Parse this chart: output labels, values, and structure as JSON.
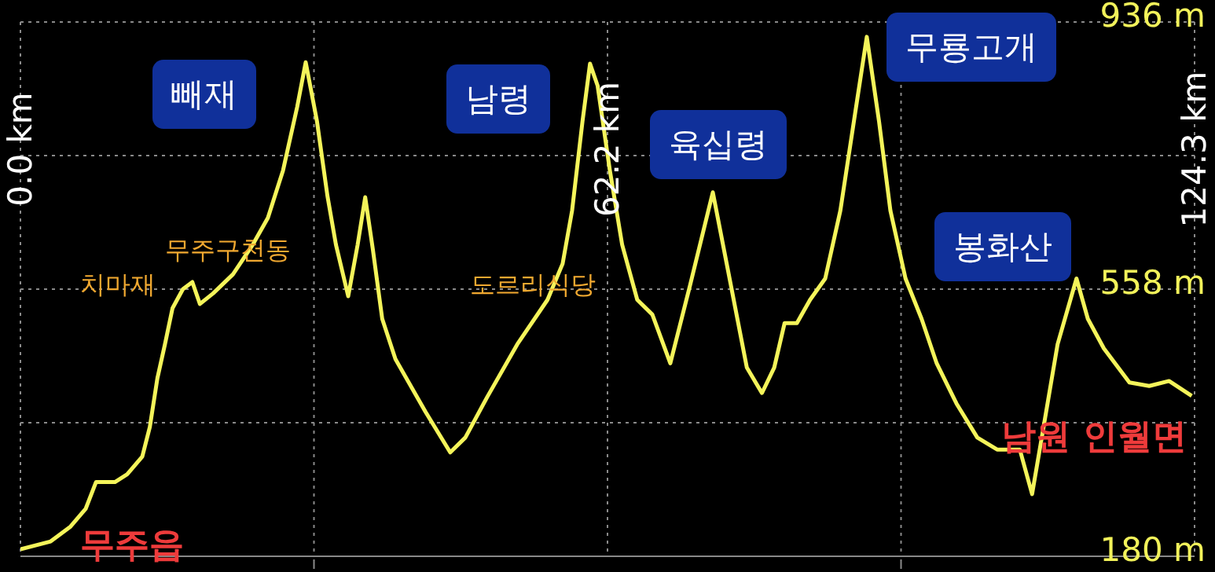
{
  "chart_data": {
    "type": "line",
    "x": [
      0,
      3.2,
      5.3,
      6.9,
      8.0,
      10.0,
      11.3,
      12.9,
      13.7,
      14.5,
      15.3,
      16.1,
      17.2,
      18.2,
      19.0,
      20.4,
      22.5,
      24.6,
      26.2,
      27.8,
      29.3,
      30.2,
      31.4,
      32.5,
      33.4,
      34.7,
      35.7,
      36.5,
      37.3,
      38.3,
      39.7,
      42.9,
      45.5,
      47.1,
      49.4,
      52.6,
      55.8,
      57.4,
      58.4,
      59.5,
      60.3,
      61.1,
      62.4,
      63.7,
      65.3,
      66.9,
      68.8,
      70.9,
      73.3,
      74.9,
      76.9,
      78.5,
      79.8,
      80.9,
      82.2,
      83.6,
      85.2,
      86.8,
      88.4,
      89.6,
      90.9,
      92.1,
      93.7,
      95.4,
      97.0,
      99.1,
      101.3,
      103.4,
      105.8,
      107.1,
      108.2,
      109.8,
      111.8,
      113.0,
      114.7,
      117.4,
      119.5,
      121.6,
      124.0
    ],
    "series": [
      {
        "color": "#f4f45a",
        "values": [
          190,
          201,
          222,
          247,
          285,
          285,
          296,
          321,
          363,
          432,
          480,
          531,
          558,
          568,
          537,
          552,
          579,
          621,
          659,
          726,
          816,
          879,
          795,
          690,
          621,
          548,
          621,
          688,
          615,
          516,
          459,
          384,
          327,
          348,
          405,
          480,
          543,
          594,
          669,
          795,
          877,
          846,
          726,
          621,
          543,
          522,
          453,
          564,
          695,
          585,
          447,
          411,
          447,
          510,
          510,
          543,
          573,
          669,
          810,
          915,
          795,
          669,
          573,
          516,
          453,
          396,
          348,
          331,
          331,
          268,
          354,
          480,
          573,
          516,
          474,
          426,
          421,
          428,
          407
        ]
      }
    ],
    "xlim": [
      0,
      124.3
    ],
    "xticks": [
      {
        "value": 0,
        "label": "0.0 km"
      },
      {
        "value": 31.075,
        "label": null
      },
      {
        "value": 62.15,
        "label": "62.2 km"
      },
      {
        "value": 93.225,
        "label": null
      },
      {
        "value": 124.3,
        "label": "124.3 km"
      }
    ],
    "ylim": [
      180,
      936
    ],
    "yticks": [
      {
        "value": 180,
        "label": "180 m"
      },
      {
        "value": 369,
        "label": null
      },
      {
        "value": 558,
        "label": "558 m"
      },
      {
        "value": 747,
        "label": null
      },
      {
        "value": 936,
        "label": "936 m"
      }
    ],
    "grid": true,
    "marker": "none",
    "line_style": "solid",
    "annotations": [
      "빼재",
      "남령",
      "육십령",
      "무룡고개",
      "봉화산",
      "치마재",
      "무주구천동",
      "도르리식당",
      "무주읍",
      "남원 인월면"
    ]
  }
}
